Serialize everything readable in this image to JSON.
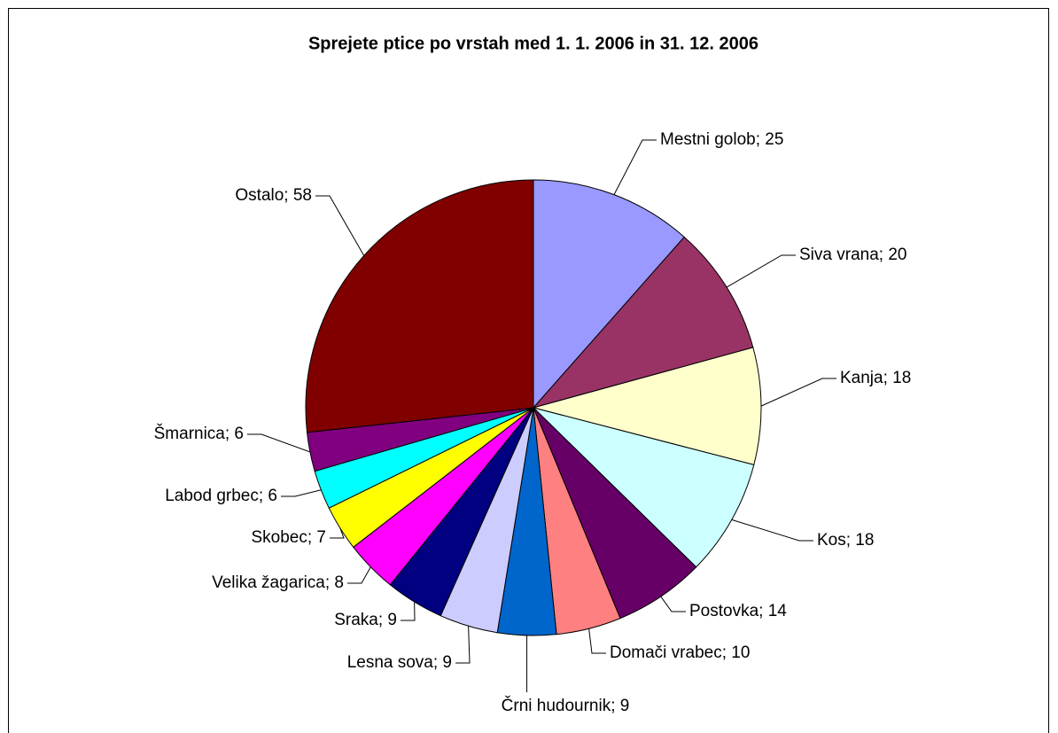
{
  "chart_data": {
    "type": "pie",
    "title": "Sprejete ptice po vrstah med 1. 1. 2006 in 31. 12. 2006",
    "values": [
      25,
      20,
      18,
      18,
      14,
      10,
      9,
      9,
      9,
      8,
      7,
      6,
      6,
      58
    ],
    "value_labels": [
      "Mestni golob; 25",
      "Siva vrana; 20",
      "Kanja; 18",
      "Kos; 18",
      "Postovka; 14",
      "Domači vrabec; 10",
      "Črni hudournik; 9",
      "Lesna sova; 9",
      "Sraka; 9",
      "Velika žagarica; 8",
      "Skobec; 7",
      "Labod grbec; 6",
      "Šmarnica; 6",
      "Ostalo; 58"
    ],
    "colors": [
      "#9999ff",
      "#993366",
      "#ffffcc",
      "#ccffff",
      "#660066",
      "#ff8080",
      "#0066cc",
      "#ccccff",
      "#000080",
      "#ff00ff",
      "#ffff00",
      "#00ffff",
      "#800080",
      "#800000"
    ]
  }
}
